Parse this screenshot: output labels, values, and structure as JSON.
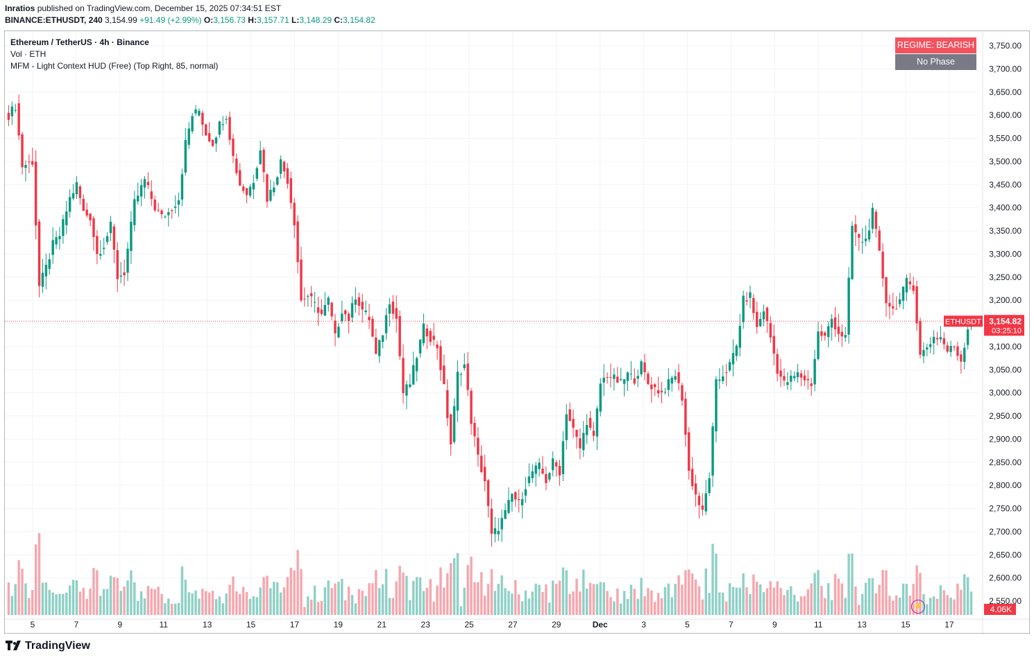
{
  "header": {
    "author": "Inratios",
    "published": "published on TradingView.com, December 15, 2025 07:34:51 EST",
    "symbol": "BINANCE:ETHUSDT, 240",
    "last": "3,154.99",
    "change": "+91.49 (+2.99%)",
    "o_label": "O:",
    "o": "3,156.73",
    "h_label": "H:",
    "h": "3,157.71",
    "l_label": "L:",
    "l": "3,148.29",
    "c_label": "C:",
    "c": "3,154.82"
  },
  "legend": {
    "title": "Ethereum / TetherUS · 4h · Binance",
    "volume": "Vol · ETH",
    "indicator": "MFM - Light Context HUD (Free) (Top Right, 85, normal)"
  },
  "hud": {
    "regime": "REGIME: BEARISH",
    "phase": "No Phase"
  },
  "footer": {
    "brand": "TradingView",
    "logo_icon": "tradingview-logo-icon"
  },
  "colors": {
    "up": "#089981",
    "down": "#f23645",
    "vol_up": "#8fd0c6",
    "vol_down": "#f5a7ae",
    "grid": "#f0f3fa",
    "hud_phase": "#787b86"
  },
  "chart_data": {
    "type": "candlestick",
    "title": "Ethereum / TetherUS · 4h · Binance",
    "symbol": "ETHUSDT",
    "ylim": [
      2500,
      3780
    ],
    "y_ticks": [
      "3,750.00",
      "3,700.00",
      "3,650.00",
      "3,600.00",
      "3,550.00",
      "3,500.00",
      "3,450.00",
      "3,400.00",
      "3,350.00",
      "3,300.00",
      "3,250.00",
      "3,200.00",
      "3,150.00",
      "3,100.00",
      "3,050.00",
      "3,000.00",
      "2,950.00",
      "2,900.00",
      "2,850.00",
      "2,800.00",
      "2,750.00",
      "2,700.00",
      "2,650.00",
      "2,600.00",
      "2,550.00"
    ],
    "x_ticks": [
      "5",
      "7",
      "9",
      "11",
      "13",
      "15",
      "17",
      "19",
      "21",
      "23",
      "25",
      "27",
      "29",
      "Dec",
      "3",
      "5",
      "7",
      "9",
      "11",
      "13",
      "15",
      "17"
    ],
    "current_price_label": "ETHUSDT",
    "current_price": "3,154.82",
    "countdown": "03:25:10",
    "volume_label": "4.06K",
    "anchors": [
      [
        0,
        3600
      ],
      [
        2,
        3620
      ],
      [
        4,
        3490
      ],
      [
        7,
        3500
      ],
      [
        9,
        3230
      ],
      [
        11,
        3270
      ],
      [
        13,
        3320
      ],
      [
        15,
        3340
      ],
      [
        18,
        3420
      ],
      [
        20,
        3450
      ],
      [
        22,
        3390
      ],
      [
        24,
        3380
      ],
      [
        26,
        3300
      ],
      [
        28,
        3320
      ],
      [
        30,
        3360
      ],
      [
        32,
        3250
      ],
      [
        34,
        3260
      ],
      [
        37,
        3410
      ],
      [
        40,
        3460
      ],
      [
        43,
        3400
      ],
      [
        45,
        3380
      ],
      [
        47,
        3390
      ],
      [
        50,
        3420
      ],
      [
        52,
        3540
      ],
      [
        54,
        3600
      ],
      [
        56,
        3610
      ],
      [
        58,
        3560
      ],
      [
        60,
        3540
      ],
      [
        62,
        3580
      ],
      [
        64,
        3600
      ],
      [
        66,
        3510
      ],
      [
        68,
        3450
      ],
      [
        70,
        3430
      ],
      [
        72,
        3460
      ],
      [
        74,
        3530
      ],
      [
        76,
        3420
      ],
      [
        78,
        3450
      ],
      [
        80,
        3500
      ],
      [
        82,
        3460
      ],
      [
        84,
        3370
      ],
      [
        86,
        3200
      ],
      [
        88,
        3210
      ],
      [
        90,
        3190
      ],
      [
        92,
        3170
      ],
      [
        94,
        3200
      ],
      [
        96,
        3120
      ],
      [
        98,
        3180
      ],
      [
        100,
        3160
      ],
      [
        102,
        3210
      ],
      [
        104,
        3180
      ],
      [
        106,
        3160
      ],
      [
        108,
        3080
      ],
      [
        110,
        3130
      ],
      [
        112,
        3200
      ],
      [
        114,
        3160
      ],
      [
        116,
        3000
      ],
      [
        118,
        3020
      ],
      [
        120,
        3080
      ],
      [
        122,
        3140
      ],
      [
        124,
        3120
      ],
      [
        126,
        3100
      ],
      [
        128,
        3010
      ],
      [
        130,
        2890
      ],
      [
        132,
        3040
      ],
      [
        134,
        3060
      ],
      [
        136,
        2940
      ],
      [
        138,
        2860
      ],
      [
        140,
        2810
      ],
      [
        142,
        2690
      ],
      [
        144,
        2710
      ],
      [
        146,
        2740
      ],
      [
        148,
        2780
      ],
      [
        150,
        2760
      ],
      [
        152,
        2800
      ],
      [
        154,
        2830
      ],
      [
        156,
        2840
      ],
      [
        158,
        2810
      ],
      [
        160,
        2850
      ],
      [
        162,
        2830
      ],
      [
        164,
        2960
      ],
      [
        166,
        2920
      ],
      [
        168,
        2880
      ],
      [
        170,
        2940
      ],
      [
        172,
        2900
      ],
      [
        174,
        3020
      ],
      [
        176,
        3040
      ],
      [
        178,
        3030
      ],
      [
        180,
        3020
      ],
      [
        182,
        3040
      ],
      [
        184,
        3030
      ],
      [
        186,
        3060
      ],
      [
        188,
        3020
      ],
      [
        190,
        3010
      ],
      [
        192,
        3000
      ],
      [
        194,
        3020
      ],
      [
        196,
        3040
      ],
      [
        198,
        2990
      ],
      [
        200,
        2830
      ],
      [
        202,
        2780
      ],
      [
        204,
        2740
      ],
      [
        206,
        2820
      ],
      [
        208,
        3020
      ],
      [
        210,
        3040
      ],
      [
        212,
        3060
      ],
      [
        214,
        3100
      ],
      [
        216,
        3200
      ],
      [
        218,
        3210
      ],
      [
        220,
        3140
      ],
      [
        222,
        3180
      ],
      [
        224,
        3120
      ],
      [
        226,
        3050
      ],
      [
        228,
        3020
      ],
      [
        230,
        3030
      ],
      [
        232,
        3040
      ],
      [
        234,
        3030
      ],
      [
        236,
        3020
      ],
      [
        238,
        3130
      ],
      [
        240,
        3120
      ],
      [
        242,
        3160
      ],
      [
        244,
        3130
      ],
      [
        246,
        3120
      ],
      [
        248,
        3360
      ],
      [
        250,
        3330
      ],
      [
        252,
        3330
      ],
      [
        254,
        3390
      ],
      [
        256,
        3300
      ],
      [
        258,
        3200
      ],
      [
        260,
        3180
      ],
      [
        262,
        3200
      ],
      [
        264,
        3240
      ],
      [
        266,
        3230
      ],
      [
        268,
        3080
      ],
      [
        270,
        3100
      ],
      [
        272,
        3120
      ],
      [
        274,
        3120
      ],
      [
        276,
        3090
      ],
      [
        278,
        3100
      ],
      [
        280,
        3070
      ],
      [
        282,
        3140
      ],
      [
        283,
        3155
      ]
    ],
    "volume_scale_max": 4060
  }
}
